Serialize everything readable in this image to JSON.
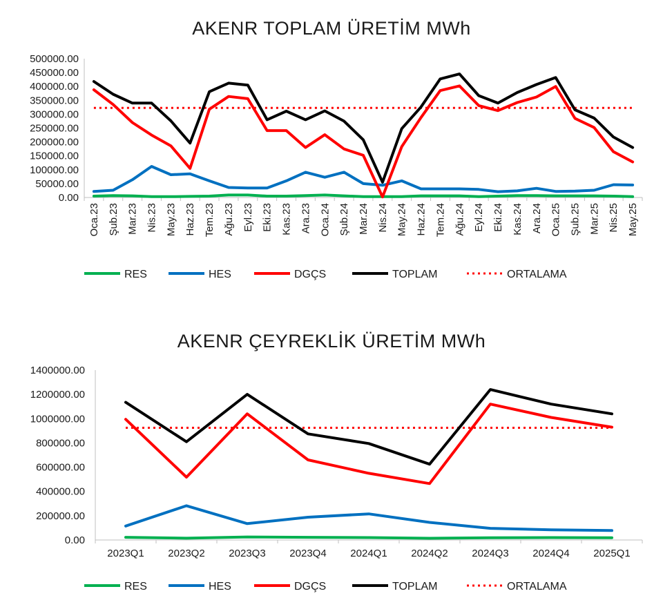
{
  "chart_data": [
    {
      "type": "line",
      "title": "AKENR TOPLAM ÜRETİM MWh",
      "xlabel": "",
      "ylabel": "",
      "ylim": [
        0,
        500000
      ],
      "y_ticks": [
        "0.00",
        "50000.00",
        "100000.00",
        "150000.00",
        "200000.00",
        "250000.00",
        "300000.00",
        "350000.00",
        "400000.00",
        "450000.00",
        "500000.00"
      ],
      "x_tick_rotation": "vertical",
      "grid": false,
      "legend_position": "bottom",
      "categories": [
        "Oca.23",
        "Şub.23",
        "Mar.23",
        "Nis.23",
        "May.23",
        "Haz.23",
        "Tem.23",
        "Ağu.23",
        "Eyl.23",
        "Eki.23",
        "Kas.23",
        "Ara.23",
        "Oca.24",
        "Şub.24",
        "Mar.24",
        "Nis.24",
        "May.24",
        "Haz.24",
        "Tem.24",
        "Ağu.24",
        "Eyl.24",
        "Eki.24",
        "Kas.24",
        "Ara.24",
        "Oca.25",
        "Şub.25",
        "Mar.25",
        "Nis.25",
        "May.25"
      ],
      "series": [
        {
          "name": "RES",
          "color": "#00b050",
          "style": "solid",
          "values": [
            5000,
            7000,
            6000,
            3000,
            3000,
            4000,
            5000,
            9000,
            9000,
            5000,
            5000,
            7000,
            9000,
            6000,
            3000,
            3000,
            3000,
            6000,
            6000,
            6000,
            3000,
            5000,
            7000,
            7000,
            6000,
            6000,
            6000,
            5000,
            3000
          ]
        },
        {
          "name": "HES",
          "color": "#0070c0",
          "style": "solid",
          "values": [
            22000,
            26000,
            64000,
            112000,
            82000,
            85000,
            60000,
            36000,
            34000,
            34000,
            60000,
            91000,
            73000,
            91000,
            50000,
            44000,
            60000,
            31000,
            31000,
            31000,
            29000,
            21000,
            24000,
            33000,
            22000,
            23000,
            26000,
            46000,
            45000
          ]
        },
        {
          "name": "DGÇS",
          "color": "#ff0000",
          "style": "solid",
          "values": [
            388000,
            335000,
            270000,
            225000,
            186000,
            105000,
            318000,
            364000,
            356000,
            241000,
            241000,
            180000,
            226000,
            175000,
            152000,
            2000,
            183000,
            288000,
            385000,
            402000,
            331000,
            313000,
            342000,
            362000,
            400000,
            285000,
            252000,
            165000,
            128000
          ]
        },
        {
          "name": "TOPLAM",
          "color": "#000000",
          "style": "solid",
          "values": [
            418000,
            372000,
            340000,
            340000,
            276000,
            196000,
            381000,
            412000,
            405000,
            280000,
            311000,
            280000,
            312000,
            275000,
            208000,
            55000,
            248000,
            326000,
            427000,
            445000,
            367000,
            340000,
            378000,
            407000,
            432000,
            316000,
            286000,
            218000,
            180000
          ]
        },
        {
          "name": "ORTALAMA",
          "color": "#ff0000",
          "style": "dotted",
          "values": [
            323000,
            323000,
            323000,
            323000,
            323000,
            323000,
            323000,
            323000,
            323000,
            323000,
            323000,
            323000,
            323000,
            323000,
            323000,
            323000,
            323000,
            323000,
            323000,
            323000,
            323000,
            323000,
            323000,
            323000,
            323000,
            323000,
            323000,
            323000,
            323000
          ]
        }
      ]
    },
    {
      "type": "line",
      "title": "AKENR ÇEYREKLİK ÜRETİM MWh",
      "xlabel": "",
      "ylabel": "",
      "ylim": [
        0,
        1400000
      ],
      "y_ticks": [
        "0.00",
        "200000.00",
        "400000.00",
        "600000.00",
        "800000.00",
        "1000000.00",
        "1200000.00",
        "1400000.00"
      ],
      "x_tick_rotation": "horizontal",
      "grid": false,
      "legend_position": "bottom",
      "categories": [
        "2023Q1",
        "2023Q2",
        "2023Q3",
        "2023Q4",
        "2024Q1",
        "2024Q2",
        "2024Q3",
        "2024Q4",
        "2025Q1"
      ],
      "series": [
        {
          "name": "RES",
          "color": "#00b050",
          "style": "solid",
          "values": [
            22000,
            15000,
            25000,
            22000,
            20000,
            14000,
            18000,
            20000,
            18000
          ]
        },
        {
          "name": "HES",
          "color": "#0070c0",
          "style": "solid",
          "values": [
            115000,
            282000,
            135000,
            188000,
            215000,
            145000,
            96000,
            84000,
            78000
          ]
        },
        {
          "name": "DGÇS",
          "color": "#ff0000",
          "style": "solid",
          "values": [
            995000,
            518000,
            1040000,
            660000,
            550000,
            465000,
            1120000,
            1010000,
            930000
          ]
        },
        {
          "name": "TOPLAM",
          "color": "#000000",
          "style": "solid",
          "values": [
            1135000,
            810000,
            1200000,
            875000,
            795000,
            625000,
            1240000,
            1120000,
            1040000
          ]
        },
        {
          "name": "ORTALAMA",
          "color": "#ff0000",
          "style": "dotted",
          "values": [
            925000,
            925000,
            925000,
            925000,
            925000,
            925000,
            925000,
            925000,
            925000
          ]
        }
      ]
    }
  ]
}
